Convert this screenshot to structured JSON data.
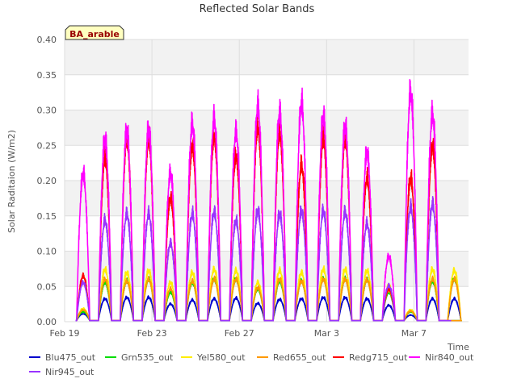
{
  "chart_data": {
    "type": "line",
    "title": "Reflected Solar Bands",
    "site_badge": "BA_arable",
    "xlabel": "Time",
    "ylabel": "Solar Raditaion (W/m2)",
    "ylim": [
      0,
      0.4
    ],
    "y_ticks": [
      "0.00",
      "0.05",
      "0.10",
      "0.15",
      "0.20",
      "0.25",
      "0.30",
      "0.35",
      "0.40"
    ],
    "x_ticks": [
      {
        "label": "Feb 19",
        "day": 0
      },
      {
        "label": "Feb 23",
        "day": 4
      },
      {
        "label": "Feb 27",
        "day": 8
      },
      {
        "label": "Mar 3",
        "day": 12
      },
      {
        "label": "Mar 7",
        "day": 16
      }
    ],
    "xlim_days": [
      0,
      18.5
    ],
    "grid": true,
    "legend_position": "bottom",
    "day_numbers": [
      0.85,
      1.85,
      2.85,
      3.85,
      4.85,
      5.85,
      6.85,
      7.85,
      8.85,
      9.85,
      10.85,
      11.85,
      12.85,
      13.85,
      14.85,
      15.85,
      16.85,
      17.85
    ],
    "series": [
      {
        "name": "Blu475_out",
        "color": "#0000cc",
        "daily_peak": [
          0.012,
          0.035,
          0.037,
          0.037,
          0.027,
          0.033,
          0.035,
          0.036,
          0.028,
          0.034,
          0.035,
          0.037,
          0.037,
          0.035,
          0.025,
          0.01,
          0.035,
          0.035
        ]
      },
      {
        "name": "Grn535_out",
        "color": "#00dd00",
        "daily_peak": [
          0.015,
          0.06,
          0.062,
          0.065,
          0.045,
          0.06,
          0.065,
          0.065,
          0.05,
          0.062,
          0.062,
          0.065,
          0.065,
          0.064,
          0.045,
          0.015,
          0.062,
          0.065
        ]
      },
      {
        "name": "Yel580_out",
        "color": "#ffee00",
        "daily_peak": [
          0.02,
          0.08,
          0.075,
          0.078,
          0.06,
          0.075,
          0.08,
          0.078,
          0.06,
          0.078,
          0.075,
          0.08,
          0.08,
          0.078,
          0.055,
          0.018,
          0.08,
          0.078
        ]
      },
      {
        "name": "Red655_out",
        "color": "#ff9900",
        "daily_peak": [
          0.018,
          0.065,
          0.062,
          0.065,
          0.05,
          0.062,
          0.065,
          0.065,
          0.052,
          0.065,
          0.062,
          0.065,
          0.065,
          0.064,
          0.048,
          0.016,
          0.065,
          0.065
        ]
      },
      {
        "name": "Redg715_out",
        "color": "#ff0000",
        "daily_peak": [
          0.07,
          0.25,
          0.28,
          0.28,
          0.19,
          0.27,
          0.285,
          0.255,
          0.3,
          0.29,
          0.24,
          0.28,
          0.28,
          0.22,
          0.05,
          0.22,
          0.27,
          0.0
        ]
      },
      {
        "name": "Nir840_out",
        "color": "#ff00ff",
        "daily_peak": [
          0.227,
          0.28,
          0.293,
          0.295,
          0.228,
          0.303,
          0.31,
          0.29,
          0.33,
          0.32,
          0.335,
          0.315,
          0.3,
          0.26,
          0.1,
          0.352,
          0.318,
          0.0
        ]
      },
      {
        "name": "Nir945_out",
        "color": "#9933ff",
        "daily_peak": [
          0.06,
          0.155,
          0.165,
          0.165,
          0.12,
          0.165,
          0.168,
          0.155,
          0.17,
          0.165,
          0.17,
          0.17,
          0.168,
          0.15,
          0.055,
          0.175,
          0.18,
          0.0
        ]
      }
    ]
  }
}
